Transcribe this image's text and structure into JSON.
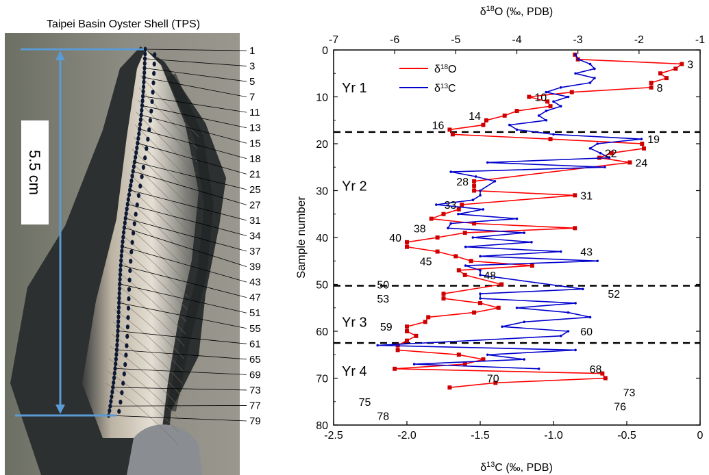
{
  "photo": {
    "title": "Taipei Basin Oyster Shell (TPS)",
    "scale_label": "5.5 cm",
    "sample_labels": [
      "1",
      "3",
      "5",
      "7",
      "11",
      "13",
      "15",
      "18",
      "21",
      "25",
      "27",
      "31",
      "34",
      "37",
      "39",
      "43",
      "47",
      "51",
      "55",
      "61",
      "65",
      "69",
      "73",
      "77",
      "79"
    ],
    "colors": {
      "scale_bar": "#5b9bd5",
      "dots": "#0e1a33"
    }
  },
  "chart_data": {
    "type": "line",
    "y_axis": {
      "label": "Sample number",
      "range": [
        0,
        80
      ],
      "ticks": [
        0,
        10,
        20,
        30,
        40,
        50,
        60,
        70,
        80
      ],
      "inverted": true
    },
    "x_axis_top": {
      "label": "δ18O (‰, PDB)",
      "range": [
        -7,
        -1
      ],
      "ticks": [
        -7,
        -6,
        -5,
        -4,
        -3,
        -2,
        -1
      ]
    },
    "x_axis_bottom": {
      "label": "δ13C (‰, PDB)",
      "range": [
        -2.5,
        0
      ],
      "ticks": [
        "-2.5",
        "-2.0",
        "-1.5",
        "-1.0",
        "-0.5",
        "0"
      ]
    },
    "year_labels": [
      {
        "text": "Yr 1",
        "y": 8
      },
      {
        "text": "Yr 2",
        "y": 29
      },
      {
        "text": "Yr 3",
        "y": 58
      },
      {
        "text": "Yr 4",
        "y": 68.5
      }
    ],
    "year_boundaries": [
      17.5,
      50.3,
      62.5
    ],
    "legend": {
      "position": "top-left",
      "entries": [
        "δ18O",
        "δ13C"
      ]
    },
    "series": [
      {
        "name": "δ18O",
        "axis": "top",
        "color": "#ff0000",
        "marker": "square",
        "x": [
          -3.05,
          -3.0,
          -1.3,
          -1.4,
          -1.65,
          -1.55,
          -1.8,
          -1.8,
          -3.1,
          -3.8,
          -3.5,
          -3.45,
          -4.0,
          -4.2,
          -4.5,
          -4.55,
          -5.1,
          -5.05,
          -3.45,
          -1.95,
          -1.92,
          -2.45,
          -2.65,
          -2.15,
          -4.7,
          -4.7,
          -4.7,
          -3.05,
          -4.9,
          -4.95,
          -5.2,
          -5.4,
          -4.7,
          -3.05,
          -4.85,
          -5.3,
          -5.8,
          -5.8,
          -5.3,
          -5.0,
          -4.75,
          -3.75,
          -4.95,
          -4.85,
          -4.25,
          -5.2,
          -5.2,
          -4.6,
          -4.3,
          -4.7,
          -5.45,
          -5.5,
          -5.8,
          -5.8,
          -5.65,
          -5.8,
          -5.95,
          -5.95,
          -4.95,
          -4.55,
          -4.85,
          -6.0,
          -2.6,
          -2.55,
          -4.35,
          -5.1
        ],
        "y": [
          1,
          2,
          3,
          4,
          5,
          6,
          7,
          8,
          9,
          10,
          11,
          12,
          13,
          14,
          15,
          16,
          17,
          18,
          19,
          20,
          21,
          22,
          23,
          24,
          28,
          29,
          30,
          31,
          33,
          34,
          35,
          36,
          37,
          38,
          39,
          40,
          41,
          42,
          43,
          44,
          45,
          46,
          47,
          48,
          50,
          52,
          53,
          54,
          55,
          56,
          57,
          58,
          59,
          60,
          61,
          62,
          63,
          64,
          65,
          66,
          67,
          68,
          69,
          70,
          71,
          72
        ],
        "point_labels": [
          {
            "text": "3",
            "x": -1.3,
            "y": 3
          },
          {
            "text": "8",
            "x": -1.8,
            "y": 8
          },
          {
            "text": "10",
            "x": -3.8,
            "y": 10
          },
          {
            "text": "14",
            "x": -4.5,
            "y": 14
          },
          {
            "text": "16",
            "x": -5.1,
            "y": 16
          },
          {
            "text": "19",
            "x": -1.95,
            "y": 19
          },
          {
            "text": "22",
            "x": -2.65,
            "y": 22
          },
          {
            "text": "24",
            "x": -2.15,
            "y": 24
          },
          {
            "text": "28",
            "x": -4.7,
            "y": 28
          },
          {
            "text": "31",
            "x": -3.05,
            "y": 31
          },
          {
            "text": "33",
            "x": -4.9,
            "y": 33
          },
          {
            "text": "38",
            "x": -5.4,
            "y": 38
          },
          {
            "text": "40",
            "x": -5.8,
            "y": 40
          },
          {
            "text": "43",
            "x": -3.05,
            "y": 43
          },
          {
            "text": "45",
            "x": -5.3,
            "y": 45
          },
          {
            "text": "48",
            "x": -4.25,
            "y": 48
          },
          {
            "text": "50",
            "x": -6.0,
            "y": 50
          },
          {
            "text": "52",
            "x": -2.6,
            "y": 52
          },
          {
            "text": "53",
            "x": -6.0,
            "y": 53
          },
          {
            "text": "59",
            "x": -5.95,
            "y": 59
          },
          {
            "text": "60",
            "x": -3.05,
            "y": 60
          },
          {
            "text": "68",
            "x": -2.9,
            "y": 68
          },
          {
            "text": "70",
            "x": -4.2,
            "y": 70
          },
          {
            "text": "73",
            "x": -2.35,
            "y": 73
          },
          {
            "text": "75",
            "x": -6.3,
            "y": 75
          },
          {
            "text": "76",
            "x": -2.5,
            "y": 76
          },
          {
            "text": "78",
            "x": -6.0,
            "y": 78
          }
        ]
      },
      {
        "name": "δ13C",
        "axis": "bottom",
        "color": "#0000cc",
        "marker": "dot",
        "x": [
          -0.85,
          -0.83,
          -0.75,
          -0.72,
          -0.85,
          -0.72,
          -0.75,
          -0.95,
          -1.05,
          -0.9,
          -1.0,
          -0.95,
          -1.05,
          -1.1,
          -1.05,
          -1.3,
          -1.25,
          -1.0,
          -0.4,
          -0.7,
          -0.75,
          -0.68,
          -0.62,
          -1.45,
          -0.65,
          -1.7,
          -1.53,
          -1.4,
          -1.5,
          -1.5,
          -1.55,
          -1.8,
          -1.48,
          -1.65,
          -1.25,
          -1.7,
          -1.72,
          -1.2,
          -1.55,
          -1.15,
          -1.6,
          -0.95,
          -1.5,
          -0.7,
          -1.6,
          -1.5,
          -1.5,
          -0.8,
          -1.5,
          -1.5,
          -0.85,
          -1.25,
          -0.9,
          -0.75,
          -1.2,
          -1.35,
          -0.9,
          -0.95,
          -2.2,
          -0.85,
          -1.45,
          -1.2,
          -1.95,
          -1.1
        ],
        "y": [
          1,
          2,
          3,
          4,
          5,
          6,
          7,
          8,
          9,
          10,
          11,
          12,
          13,
          14,
          15,
          16,
          17,
          18,
          19,
          20,
          21,
          22,
          23,
          24,
          25,
          26,
          27,
          28,
          30,
          31,
          32,
          33,
          34,
          35,
          36,
          37,
          38,
          39,
          40,
          41,
          42,
          43,
          44,
          45,
          46,
          47,
          48,
          51,
          52,
          53,
          54,
          55,
          56,
          57,
          58,
          59,
          60,
          61,
          63,
          64,
          65,
          66,
          67,
          68
        ],
        "point_labels": []
      }
    ]
  }
}
